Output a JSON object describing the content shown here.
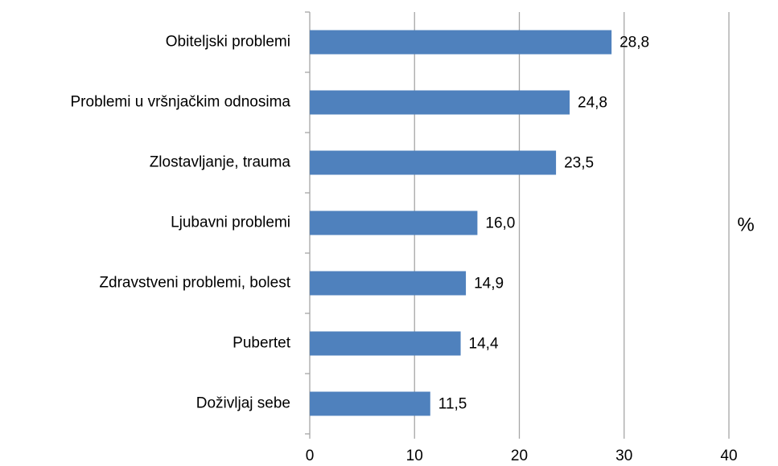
{
  "chart_data": {
    "type": "bar",
    "orientation": "horizontal",
    "categories": [
      "Obiteljski problemi",
      "Problemi u vršnjačkim odnosima",
      "Zlostavljanje, trauma",
      "Ljubavni problemi",
      "Zdravstveni problemi, bolest",
      "Pubertet",
      "Doživljaj sebe"
    ],
    "values": [
      28.8,
      24.8,
      23.5,
      16.0,
      14.9,
      14.4,
      11.5
    ],
    "value_labels": [
      "28,8",
      "24,8",
      "23,5",
      "16,0",
      "14,9",
      "14,4",
      "11,5"
    ],
    "color": "#4f81bd",
    "xlim": [
      0,
      40
    ],
    "xticks": [
      0,
      10,
      20,
      30,
      40
    ],
    "grid": true,
    "x_axis_label": "%"
  }
}
